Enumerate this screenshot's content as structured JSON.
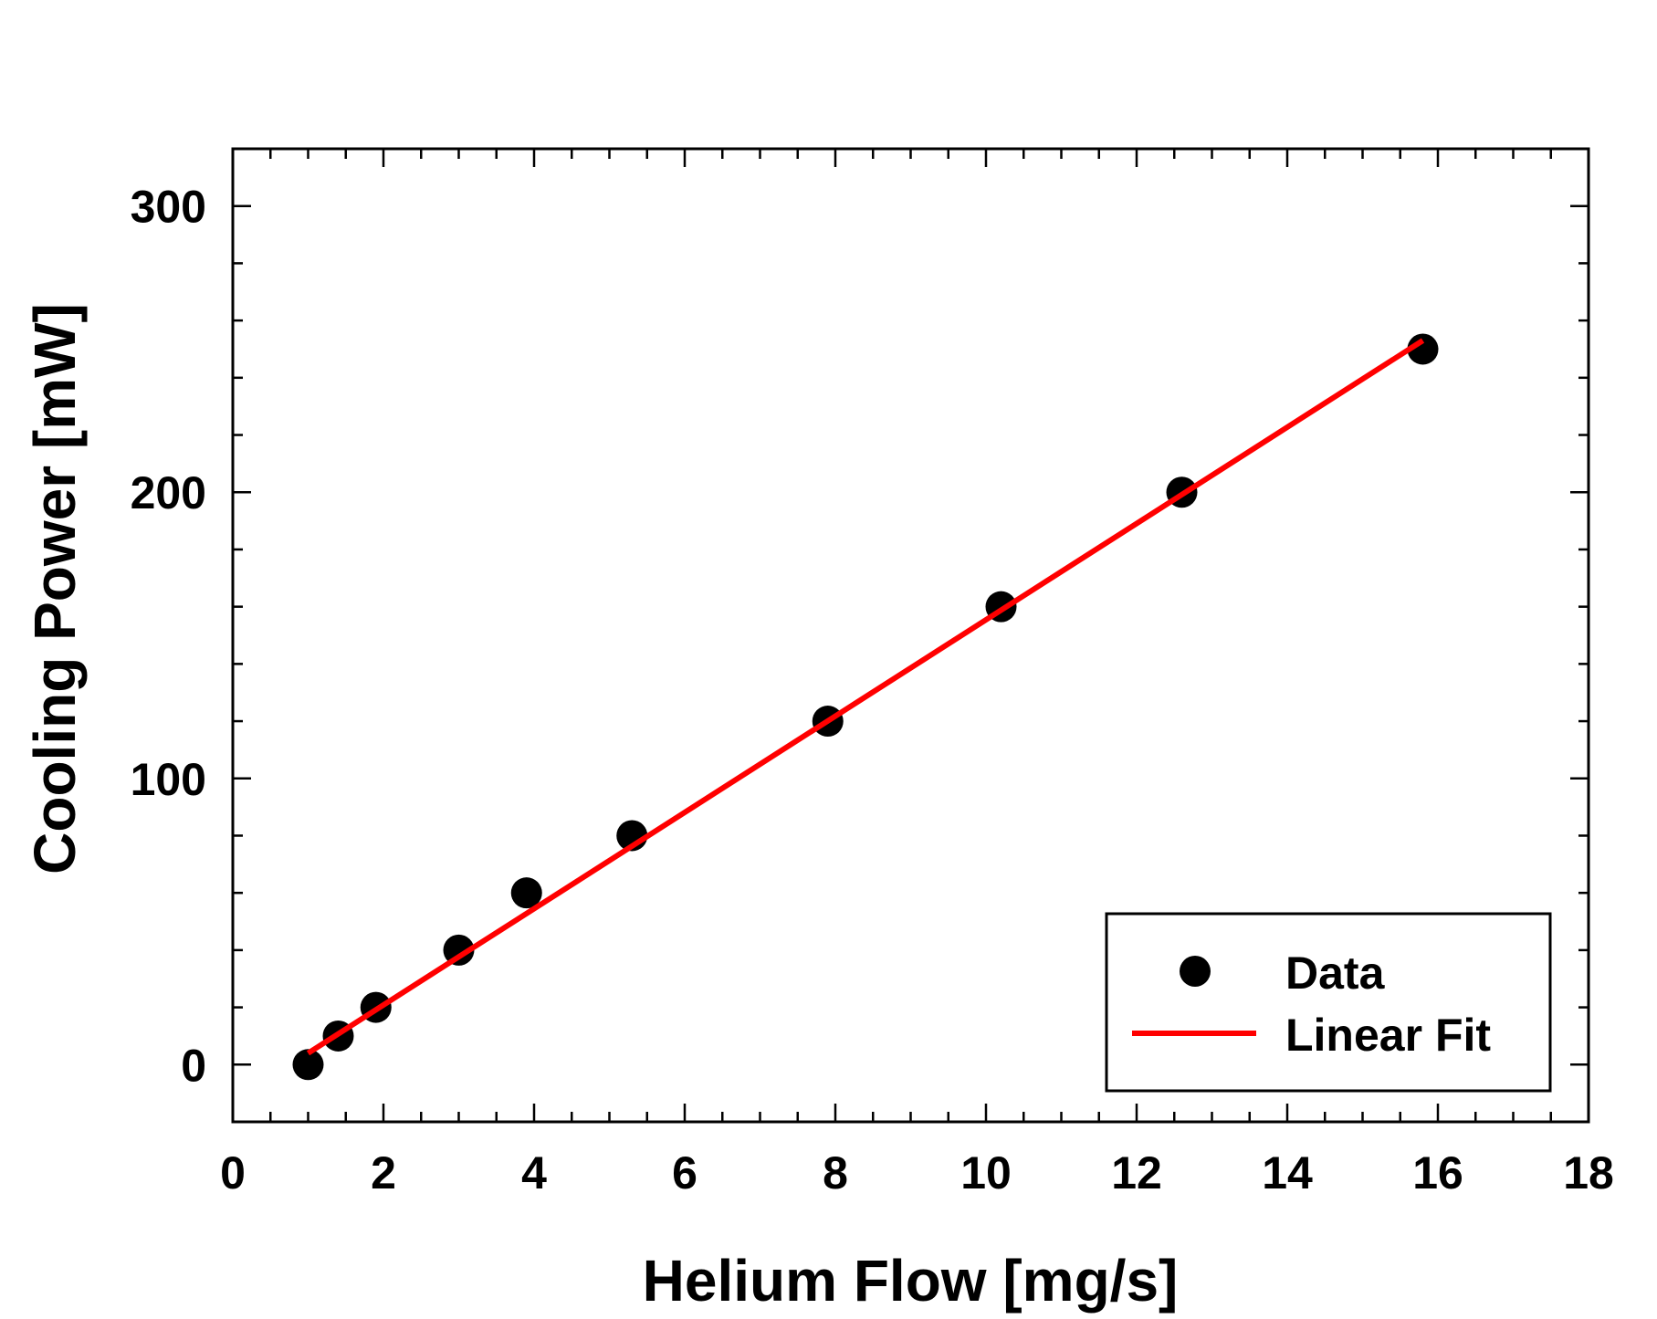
{
  "chart_data": {
    "type": "scatter",
    "xlabel": "Helium Flow [mg/s]",
    "ylabel": "Cooling Power [mW]",
    "xlim": [
      0,
      18
    ],
    "ylim": [
      -20,
      320
    ],
    "x_ticks": [
      0,
      2,
      4,
      6,
      8,
      10,
      12,
      14,
      16,
      18
    ],
    "x_minor_step": 0.5,
    "y_ticks": [
      0,
      100,
      200,
      300
    ],
    "y_minor_step": 20,
    "grid": false,
    "legend_position": "bottom-right",
    "series": [
      {
        "name": "Data",
        "kind": "scatter",
        "color": "#000000",
        "x": [
          1.0,
          1.4,
          1.9,
          3.0,
          3.9,
          5.3,
          7.9,
          10.2,
          12.6,
          15.8
        ],
        "y": [
          0,
          10,
          20,
          40,
          60,
          80,
          120,
          160,
          200,
          250
        ]
      },
      {
        "name": "Linear Fit",
        "kind": "line",
        "color": "#ff0000",
        "x": [
          1.0,
          15.8
        ],
        "y": [
          4,
          253
        ]
      }
    ]
  }
}
